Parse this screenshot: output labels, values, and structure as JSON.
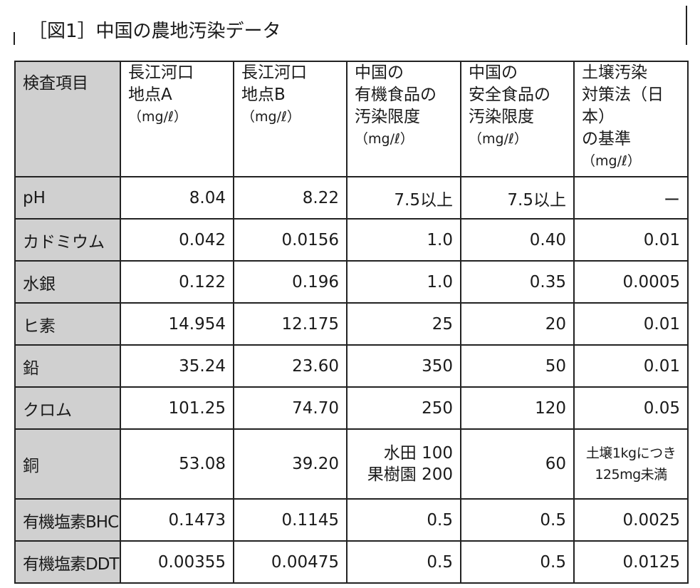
{
  "figure": {
    "title": "［図1］中国の農地汚染データ"
  },
  "table": {
    "headers": [
      {
        "lines": [
          "検査項目"
        ],
        "unit": ""
      },
      {
        "lines": [
          "長江河口",
          "地点A"
        ],
        "unit": "（mg/ℓ）"
      },
      {
        "lines": [
          "長江河口",
          "地点B"
        ],
        "unit": "（mg/ℓ）"
      },
      {
        "lines": [
          "中国の",
          "有機食品の",
          "汚染限度"
        ],
        "unit": "（mg/ℓ）"
      },
      {
        "lines": [
          "中国の",
          "安全食品の",
          "汚染限度"
        ],
        "unit": "（mg/ℓ）"
      },
      {
        "lines": [
          "土壌汚染",
          "対策法（日本）",
          "の基準"
        ],
        "unit": "（mg/ℓ）"
      }
    ],
    "rows": [
      {
        "item": "pH",
        "a": "8.04",
        "b": "8.22",
        "organic": "7.5以上",
        "safe": "7.5以上",
        "japan": "ー"
      },
      {
        "item": "カドミウム",
        "a": "0.042",
        "b": "0.0156",
        "organic": "1.0",
        "safe": "0.40",
        "japan": "0.01"
      },
      {
        "item": "水銀",
        "a": "0.122",
        "b": "0.196",
        "organic": "1.0",
        "safe": "0.35",
        "japan": "0.0005"
      },
      {
        "item": "ヒ素",
        "a": "14.954",
        "b": "12.175",
        "organic": "25",
        "safe": "20",
        "japan": "0.01"
      },
      {
        "item": "鉛",
        "a": "35.24",
        "b": "23.60",
        "organic": "350",
        "safe": "50",
        "japan": "0.01"
      },
      {
        "item": "クロム",
        "a": "101.25",
        "b": "74.70",
        "organic": "250",
        "safe": "120",
        "japan": "0.05"
      },
      {
        "item": "銅",
        "a": "53.08",
        "b": "39.20",
        "organic_lines": [
          "水田 100",
          "果樹園 200"
        ],
        "safe": "60",
        "japan_lines": [
          "土壌1kgにつき",
          "125mg未満"
        ]
      },
      {
        "item": "有機塩素BHC",
        "a": "0.1473",
        "b": "0.1145",
        "organic": "0.5",
        "safe": "0.5",
        "japan": "0.0025"
      },
      {
        "item": "有機塩素DDT",
        "a": "0.00355",
        "b": "0.00475",
        "organic": "0.5",
        "safe": "0.5",
        "japan": "0.0125"
      }
    ]
  }
}
